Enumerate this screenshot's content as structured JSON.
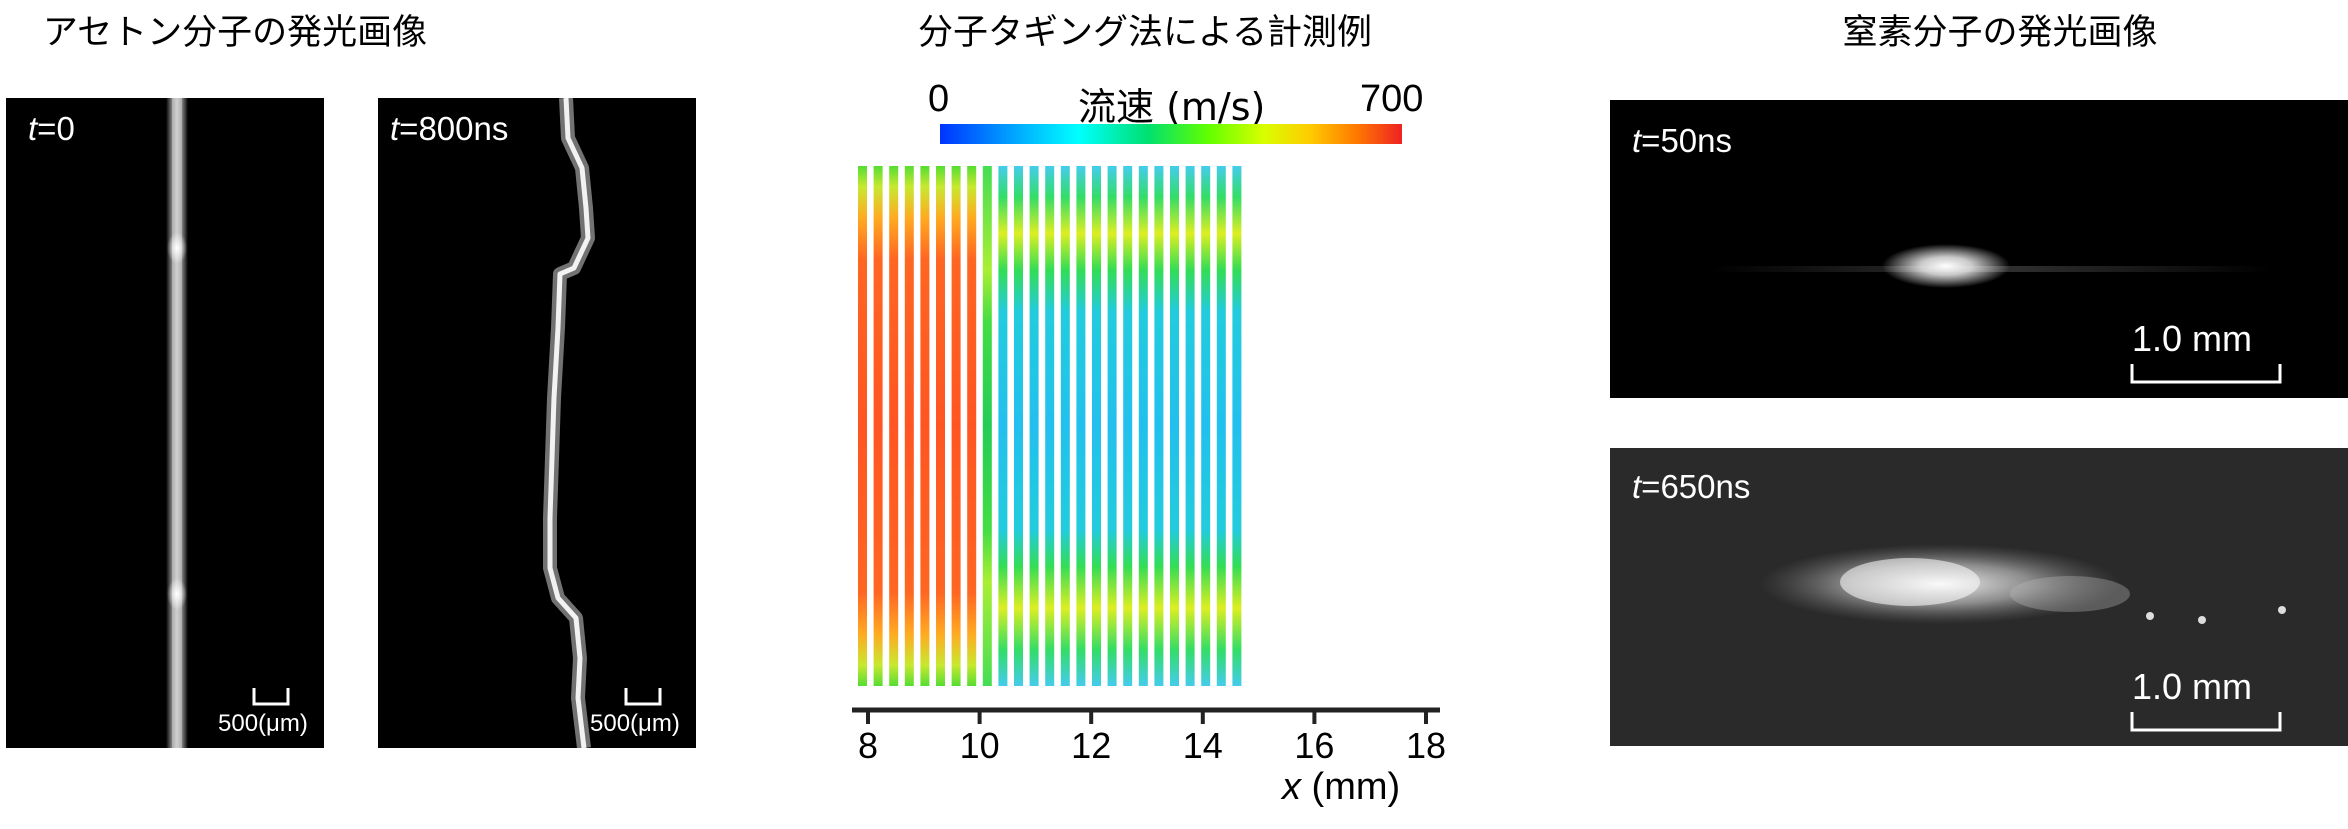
{
  "sections": {
    "acetone_title": "アセトン分子の発光画像",
    "tagging_title": "分子タギング法による計測例",
    "nitrogen_title": "窒素分子の発光画像"
  },
  "acetone": {
    "panel1": {
      "t_var": "t",
      "t_val": "=0",
      "scale_label": "500(μm)"
    },
    "panel2": {
      "t_var": "t",
      "t_val": "=800ns",
      "scale_label": "500(μm)"
    }
  },
  "nitrogen": {
    "panel1": {
      "t_var": "t",
      "t_val": "=50ns",
      "scale_label": "1.0 mm"
    },
    "panel2": {
      "t_var": "t",
      "t_val": "=650ns",
      "scale_label": "1.0 mm"
    }
  },
  "colorbar": {
    "min_label": "0",
    "title": "流速 (m/s)",
    "max_label": "700",
    "min": 0,
    "max": 700
  },
  "chart_data": {
    "type": "heatmap",
    "xlabel_var": "x",
    "xlabel_unit": " (mm)",
    "xlim": [
      8,
      18
    ],
    "x_ticks": [
      8,
      10,
      12,
      14,
      16,
      18
    ],
    "tick_labels": [
      "8",
      "10",
      "12",
      "14",
      "16",
      "18"
    ],
    "colorbar_range": [
      0,
      700
    ],
    "stripe_count": 25,
    "grid": false
  }
}
